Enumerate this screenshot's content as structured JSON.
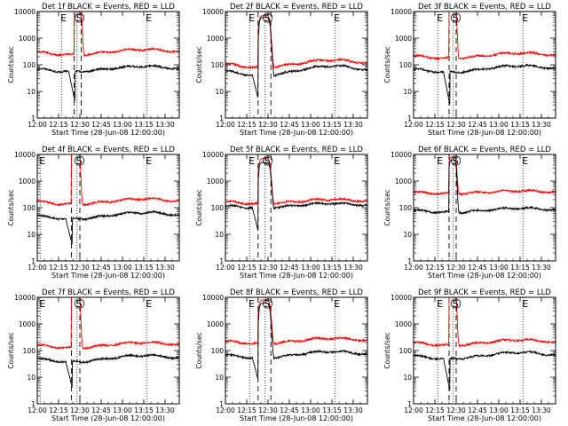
{
  "figure": {
    "x_axis_label": "Start Time (28-Jun-08 12:00:00)",
    "y_axis_label": "Counts/sec"
  },
  "colors": {
    "events": "#000000",
    "lld": "#ff0000",
    "axes": "#000000"
  },
  "chart_data": [
    {
      "type": "line",
      "title": "Det 1f BLACK = Events, RED = LLD",
      "xlabel": "Start Time (28-Jun-08 12:00:00)",
      "ylabel": "Counts/sec",
      "x_range": [
        "12:00",
        "13:40"
      ],
      "ylim": [
        1,
        10000
      ],
      "y_scale": "log",
      "x_ticks": [
        "12:00",
        "12:15",
        "12:30",
        "12:45",
        "13:00",
        "13:15",
        "13:30"
      ],
      "y_ticks": [
        "1",
        "10",
        "100",
        "1000",
        "10000"
      ],
      "markers": [
        {
          "label": "E",
          "time": "12:17"
        },
        {
          "label": "S",
          "time": "12:28"
        },
        {
          "label": "E",
          "time": "13:17"
        }
      ],
      "dashed_lines": [
        "12:26",
        "12:31"
      ],
      "series": [
        {
          "name": "Events",
          "color": "#000000",
          "baseline": 70,
          "peak": 0,
          "dip": 4,
          "wave": 0.1
        },
        {
          "name": "LLD",
          "color": "#ff0000",
          "baseline": 300,
          "peak": 20000,
          "dip": null,
          "wave": 0.1
        }
      ]
    },
    {
      "type": "line",
      "title": "Det 2f BLACK = Events, RED = LLD",
      "xlabel": "Start Time (28-Jun-08 12:00:00)",
      "ylabel": "Counts/sec",
      "x_range": [
        "12:00",
        "13:40"
      ],
      "ylim": [
        1,
        10000
      ],
      "y_scale": "log",
      "x_ticks": [
        "12:00",
        "12:15",
        "12:30",
        "12:45",
        "13:00",
        "13:15",
        "13:30"
      ],
      "y_ticks": [
        "1",
        "10",
        "100",
        "1000",
        "10000"
      ],
      "markers": [
        {
          "label": "E",
          "time": "12:17"
        },
        {
          "label": "S",
          "time": "12:28"
        },
        {
          "label": "E",
          "time": "13:17"
        }
      ],
      "dashed_lines": [
        "12:23",
        "12:32"
      ],
      "series": [
        {
          "name": "Events",
          "color": "#000000",
          "baseline": 60,
          "peak": 6000,
          "dip": 4,
          "wave": 0.18
        },
        {
          "name": "LLD",
          "color": "#ff0000",
          "baseline": 110,
          "peak": 7000,
          "dip": null,
          "wave": 0.14
        }
      ]
    },
    {
      "type": "line",
      "title": "Det 3f BLACK = Events, RED = LLD",
      "xlabel": "Start Time (28-Jun-08 12:00:00)",
      "ylabel": "Counts/sec",
      "x_range": [
        "12:00",
        "13:40"
      ],
      "ylim": [
        1,
        10000
      ],
      "y_scale": "log",
      "x_ticks": [
        "12:00",
        "12:15",
        "12:30",
        "12:45",
        "13:00",
        "13:15",
        "13:30"
      ],
      "y_ticks": [
        "1",
        "10",
        "100",
        "1000",
        "10000"
      ],
      "markers": [
        {
          "label": "E",
          "time": "12:17"
        },
        {
          "label": "S",
          "time": "12:28"
        },
        {
          "label": "E",
          "time": "13:17"
        }
      ],
      "dashed_lines": [
        "12:25",
        "12:30"
      ],
      "series": [
        {
          "name": "Events",
          "color": "#000000",
          "baseline": 70,
          "peak": 0,
          "dip": 3,
          "wave": 0.12
        },
        {
          "name": "LLD",
          "color": "#ff0000",
          "baseline": 220,
          "peak": 20000,
          "dip": null,
          "wave": 0.1
        }
      ]
    },
    {
      "type": "line",
      "title": "Det 4f BLACK = Events, RED = LLD",
      "xlabel": "Start Time (28-Jun-08 12:00:00)",
      "ylabel": "Counts/sec",
      "x_range": [
        "12:00",
        "13:40"
      ],
      "ylim": [
        1,
        10000
      ],
      "y_scale": "log",
      "x_ticks": [
        "12:00",
        "12:15",
        "12:30",
        "12:45",
        "13:00",
        "13:15",
        "13:30"
      ],
      "y_ticks": [
        "1",
        "10",
        "100",
        "1000",
        "10000"
      ],
      "markers": [
        {
          "label": "E",
          "time": "12:02"
        },
        {
          "label": "S",
          "time": "12:28"
        },
        {
          "label": "E",
          "time": "13:17"
        }
      ],
      "dashed_lines": [
        "12:24",
        "12:30"
      ],
      "series": [
        {
          "name": "Events",
          "color": "#000000",
          "baseline": 50,
          "peak": 0,
          "dip": 4,
          "wave": 0.12
        },
        {
          "name": "LLD",
          "color": "#ff0000",
          "baseline": 170,
          "peak": 20000,
          "dip": null,
          "wave": 0.1
        }
      ]
    },
    {
      "type": "line",
      "title": "Det 5f BLACK = Events, RED = LLD",
      "xlabel": "Start Time (28-Jun-08 12:00:00)",
      "ylabel": "Counts/sec",
      "x_range": [
        "12:00",
        "13:40"
      ],
      "ylim": [
        1,
        10000
      ],
      "y_scale": "log",
      "x_ticks": [
        "12:00",
        "12:15",
        "12:30",
        "12:45",
        "13:00",
        "13:15",
        "13:30"
      ],
      "y_ticks": [
        "1",
        "10",
        "100",
        "1000",
        "10000"
      ],
      "markers": [
        {
          "label": "E",
          "time": "12:17"
        },
        {
          "label": "S",
          "time": "12:28"
        },
        {
          "label": "E",
          "time": "13:17"
        }
      ],
      "dashed_lines": [
        "12:23",
        "12:32"
      ],
      "series": [
        {
          "name": "Events",
          "color": "#000000",
          "baseline": 120,
          "peak": 5000,
          "dip": 10,
          "wave": 0.08
        },
        {
          "name": "LLD",
          "color": "#ff0000",
          "baseline": 170,
          "peak": 7000,
          "dip": null,
          "wave": 0.08
        }
      ]
    },
    {
      "type": "line",
      "title": "Det 6f BLACK = Events, RED = LLD",
      "xlabel": "Start Time (28-Jun-08 12:00:00)",
      "ylabel": "Counts/sec",
      "x_range": [
        "12:00",
        "13:40"
      ],
      "ylim": [
        1,
        10000
      ],
      "y_scale": "log",
      "x_ticks": [
        "12:00",
        "12:15",
        "12:30",
        "12:45",
        "13:00",
        "13:15",
        "13:30"
      ],
      "y_ticks": [
        "1",
        "10",
        "100",
        "1000",
        "10000"
      ],
      "markers": [
        {
          "label": "E",
          "time": "12:17"
        },
        {
          "label": "S",
          "time": "12:28"
        },
        {
          "label": "E",
          "time": "13:17"
        }
      ],
      "dashed_lines": [
        "12:25",
        "12:30"
      ],
      "series": [
        {
          "name": "Events",
          "color": "#000000",
          "baseline": 80,
          "peak": 6000,
          "dip": null,
          "wave": 0.08
        },
        {
          "name": "LLD",
          "color": "#ff0000",
          "baseline": 380,
          "peak": 8000,
          "dip": null,
          "wave": 0.05
        }
      ]
    },
    {
      "type": "line",
      "title": "Det 7f BLACK = Events, RED = LLD",
      "xlabel": "Start Time (28-Jun-08 12:00:00)",
      "ylabel": "Counts/sec",
      "x_range": [
        "12:00",
        "13:40"
      ],
      "ylim": [
        1,
        10000
      ],
      "y_scale": "log",
      "x_ticks": [
        "12:00",
        "12:15",
        "12:30",
        "12:45",
        "13:00",
        "13:15",
        "13:30"
      ],
      "y_ticks": [
        "1",
        "10",
        "100",
        "1000",
        "10000"
      ],
      "markers": [
        {
          "label": "E",
          "time": "12:02"
        },
        {
          "label": "S",
          "time": "12:28"
        },
        {
          "label": "E",
          "time": "13:17"
        }
      ],
      "dashed_lines": [
        "12:24",
        "12:30"
      ],
      "series": [
        {
          "name": "Events",
          "color": "#000000",
          "baseline": 50,
          "peak": 0,
          "dip": 4,
          "wave": 0.12
        },
        {
          "name": "LLD",
          "color": "#ff0000",
          "baseline": 160,
          "peak": 20000,
          "dip": null,
          "wave": 0.1
        }
      ]
    },
    {
      "type": "line",
      "title": "Det 8f BLACK = Events, RED = LLD",
      "xlabel": "Start Time (28-Jun-08 12:00:00)",
      "ylabel": "Counts/sec",
      "x_range": [
        "12:00",
        "13:40"
      ],
      "ylim": [
        1,
        10000
      ],
      "y_scale": "log",
      "x_ticks": [
        "12:00",
        "12:15",
        "12:30",
        "12:45",
        "13:00",
        "13:15",
        "13:30"
      ],
      "y_ticks": [
        "1",
        "10",
        "100",
        "1000",
        "10000"
      ],
      "markers": [
        {
          "label": "E",
          "time": "12:17"
        },
        {
          "label": "S",
          "time": "12:28"
        },
        {
          "label": "E",
          "time": "13:17"
        }
      ],
      "dashed_lines": [
        "12:23",
        "12:32"
      ],
      "series": [
        {
          "name": "Events",
          "color": "#000000",
          "baseline": 70,
          "peak": 6000,
          "dip": 6,
          "wave": 0.12
        },
        {
          "name": "LLD",
          "color": "#ff0000",
          "baseline": 230,
          "peak": 8000,
          "dip": null,
          "wave": 0.1
        }
      ]
    },
    {
      "type": "line",
      "title": "Det 9f BLACK = Events, RED = LLD",
      "xlabel": "Start Time (28-Jun-08 12:00:00)",
      "ylabel": "Counts/sec",
      "x_range": [
        "12:00",
        "13:40"
      ],
      "ylim": [
        1,
        10000
      ],
      "y_scale": "log",
      "x_ticks": [
        "12:00",
        "12:15",
        "12:30",
        "12:45",
        "13:00",
        "13:15",
        "13:30"
      ],
      "y_ticks": [
        "1",
        "10",
        "100",
        "1000",
        "10000"
      ],
      "markers": [
        {
          "label": "E",
          "time": "12:17"
        },
        {
          "label": "S",
          "time": "12:28"
        },
        {
          "label": "E",
          "time": "13:17"
        }
      ],
      "dashed_lines": [
        "12:25",
        "12:30"
      ],
      "series": [
        {
          "name": "Events",
          "color": "#000000",
          "baseline": 65,
          "peak": 0,
          "dip": 3,
          "wave": 0.12
        },
        {
          "name": "LLD",
          "color": "#ff0000",
          "baseline": 200,
          "peak": 20000,
          "dip": null,
          "wave": 0.1
        }
      ]
    }
  ]
}
